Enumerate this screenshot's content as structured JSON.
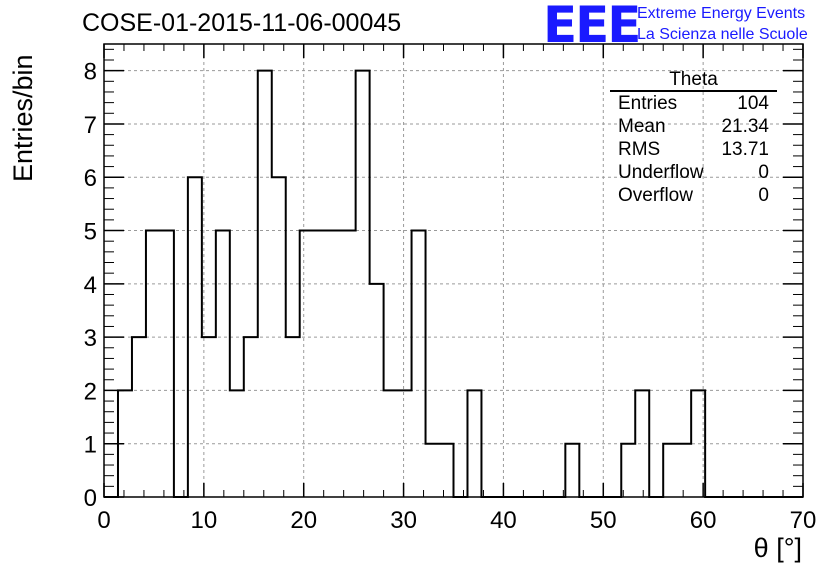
{
  "header": {
    "title": "COSE-01-2015-11-06-00045",
    "logo": "EEE",
    "logo_line1": "Extreme Energy Events",
    "logo_line2": "La Scienza nelle Scuole"
  },
  "stats": {
    "title": "Theta",
    "rows": [
      {
        "label": "Entries",
        "value": "104"
      },
      {
        "label": "Mean",
        "value": "21.34"
      },
      {
        "label": "RMS",
        "value": "13.71"
      },
      {
        "label": "Underflow",
        "value": "0"
      },
      {
        "label": "Overflow",
        "value": "0"
      }
    ]
  },
  "chart_data": {
    "type": "bar",
    "histogram": "step",
    "xlabel": "θ [°]",
    "ylabel": "Entries/bin",
    "xlim": [
      0,
      70
    ],
    "ylim": [
      0,
      8.5
    ],
    "grid": true,
    "bin_width": 1.4,
    "bin_start": 0,
    "values": [
      0,
      2,
      3,
      5,
      5,
      0,
      6,
      3,
      5,
      2,
      3,
      8,
      6,
      3,
      5,
      5,
      5,
      5,
      8,
      4,
      2,
      2,
      5,
      1,
      1,
      0,
      2,
      0,
      0,
      0,
      0,
      0,
      0,
      1,
      0,
      0,
      0,
      1,
      2,
      0,
      1,
      1,
      2,
      0,
      0,
      0,
      0,
      0,
      0,
      0
    ],
    "xticks": [
      0,
      10,
      20,
      30,
      40,
      50,
      60,
      70
    ],
    "yticks": [
      0,
      1,
      2,
      3,
      4,
      5,
      6,
      7,
      8
    ],
    "colors": {
      "line": "#000000",
      "grid": "#9a9a9a",
      "logo": "#1a1aff"
    }
  }
}
